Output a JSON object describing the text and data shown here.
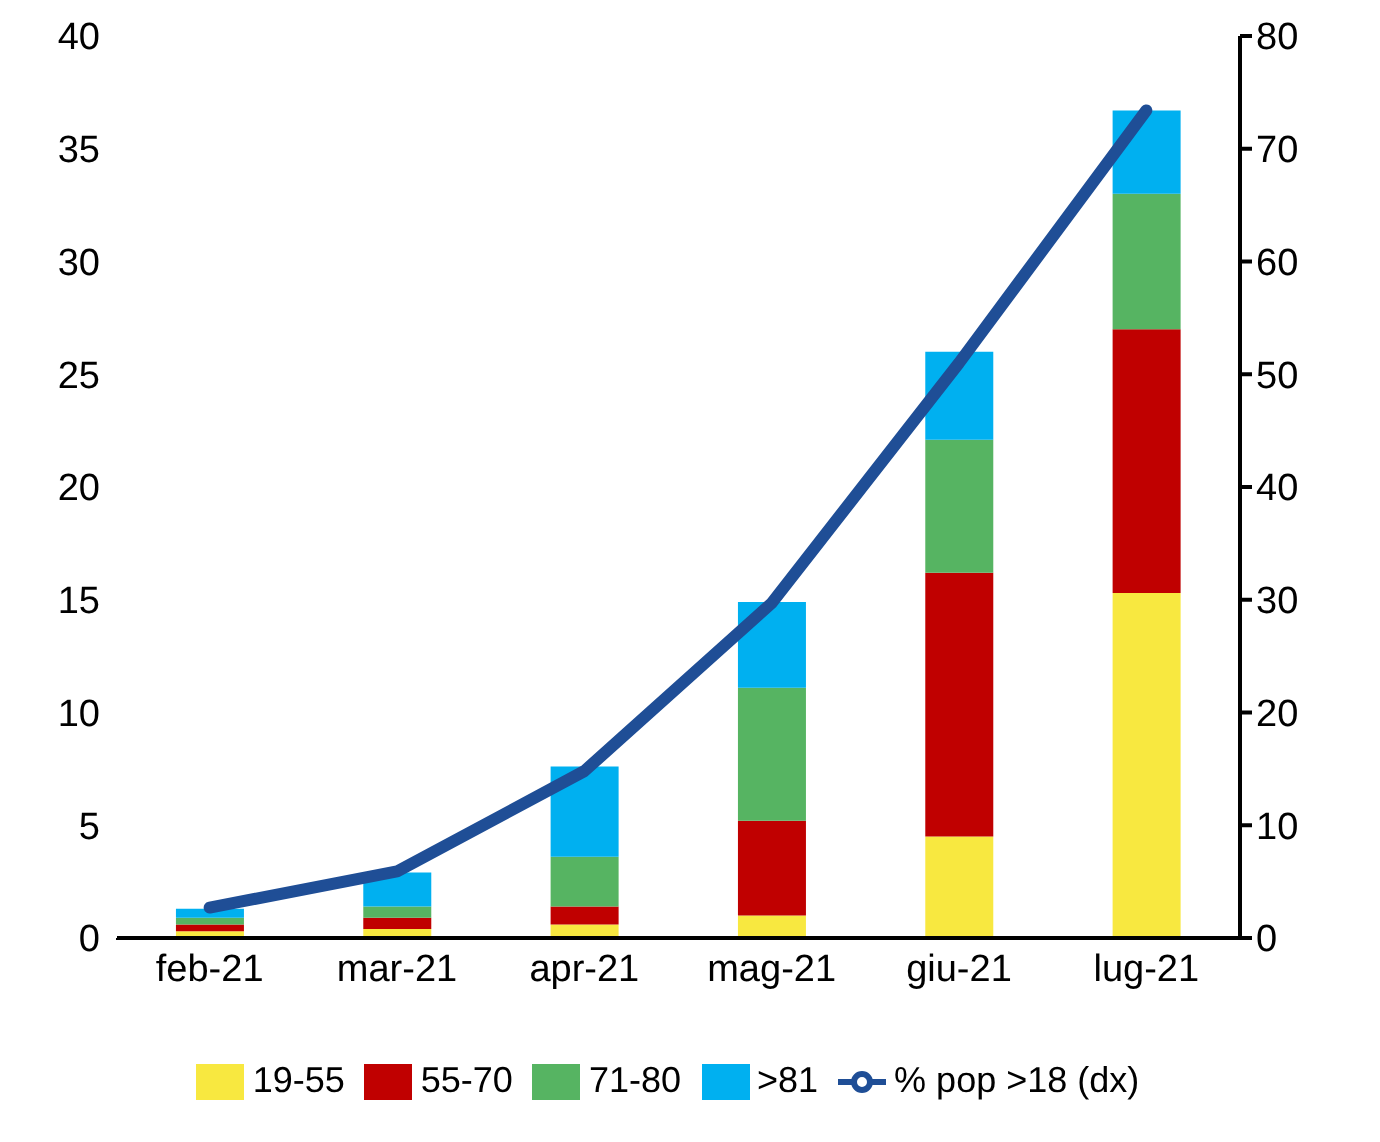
{
  "chart_data": {
    "type": "bar",
    "stacked": true,
    "categories": [
      "feb-21",
      "mar-21",
      "apr-21",
      "mag-21",
      "giu-21",
      "lug-21"
    ],
    "series": [
      {
        "name": "19-55",
        "color": "#f8e840",
        "values": [
          0.3,
          0.4,
          0.6,
          1.0,
          4.5,
          15.3
        ]
      },
      {
        "name": "55-70",
        "color": "#c00000",
        "values": [
          0.3,
          0.5,
          0.8,
          4.2,
          11.7,
          11.7
        ]
      },
      {
        "name": "71-80",
        "color": "#56b462",
        "values": [
          0.3,
          0.5,
          2.2,
          5.9,
          5.9,
          6.0
        ]
      },
      {
        "name": ">81",
        "color": "#00b0f0",
        "values": [
          0.4,
          1.5,
          4.0,
          3.8,
          3.9,
          3.7
        ]
      },
      {
        "name": "% pop >18 (dx)",
        "type": "line",
        "axis": "y2",
        "color": "#1f4e96",
        "values": [
          2.7,
          5.9,
          14.8,
          29.7,
          51,
          73.4
        ]
      }
    ],
    "ylim": [
      0,
      40
    ],
    "yticks": [
      0,
      5,
      10,
      15,
      20,
      25,
      30,
      35,
      40
    ],
    "y2lim": [
      0,
      80
    ],
    "y2ticks": [
      0,
      10,
      20,
      30,
      40,
      50,
      60,
      70,
      80
    ],
    "grid": false,
    "legend": "bottom",
    "marker": "none"
  }
}
